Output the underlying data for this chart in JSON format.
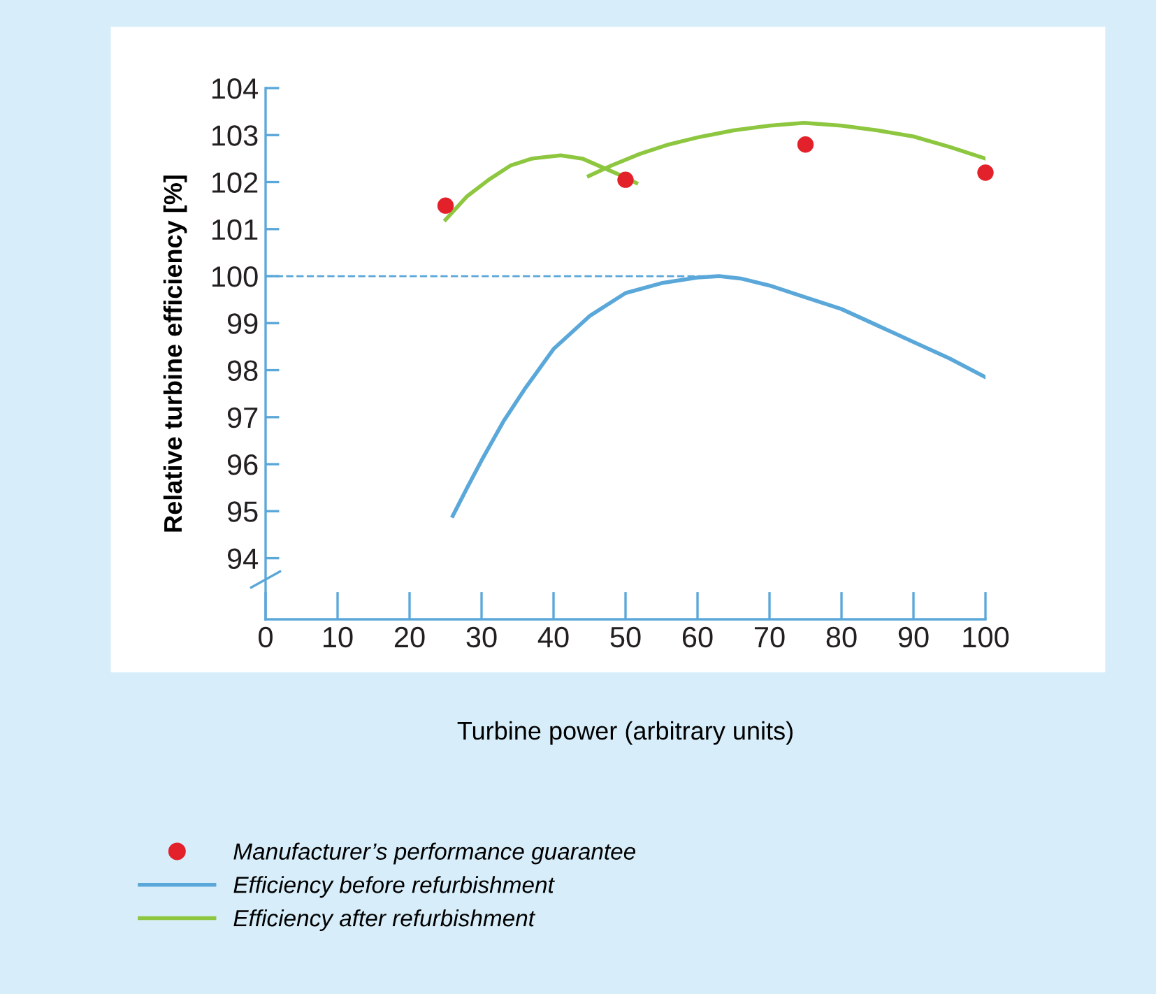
{
  "chart_data": {
    "type": "line",
    "xlabel": "Turbine power (arbitrary units)",
    "ylabel": "Relative turbine efficiency [%]",
    "xlim": [
      0,
      100
    ],
    "xticks": [
      0,
      10,
      20,
      30,
      40,
      50,
      60,
      70,
      80,
      90,
      100
    ],
    "ylim": [
      92.7,
      104
    ],
    "yticks": [
      94,
      95,
      96,
      97,
      98,
      99,
      100,
      101,
      102,
      103,
      104
    ],
    "grid": false,
    "legend": "bottom",
    "line_style": "solid",
    "series": [
      {
        "name": "Manufacturer’s performance guarantee",
        "type": "scatter",
        "marker": "circle",
        "color": "#e3212b",
        "x": [
          25,
          50,
          75,
          100
        ],
        "values": [
          101.5,
          102.05,
          102.8,
          102.2
        ]
      },
      {
        "name": "Efficiency before refurbishment",
        "color": "#5aa7d9",
        "x": [
          26,
          28,
          30,
          33,
          36,
          40,
          45,
          50,
          55,
          60,
          63,
          66,
          70,
          75,
          80,
          85,
          90,
          95,
          100
        ],
        "values": [
          94.9,
          95.5,
          96.08,
          96.9,
          97.6,
          98.45,
          99.15,
          99.64,
          99.85,
          99.97,
          100.0,
          99.95,
          99.8,
          99.55,
          99.3,
          98.95,
          98.6,
          98.25,
          97.85
        ]
      },
      {
        "name": "Efficiency after refurbishment",
        "color": "#8dc63f",
        "x": [
          25,
          28,
          31,
          34,
          37,
          41,
          44,
          47,
          50,
          51.5
        ],
        "values": [
          101.2,
          101.7,
          102.05,
          102.35,
          102.5,
          102.57,
          102.5,
          102.3,
          102.1,
          101.98
        ]
      },
      {
        "color": "#8dc63f",
        "x": [
          44.9,
          48,
          52,
          56,
          60,
          65,
          70,
          74.8,
          80,
          85,
          90,
          95,
          100
        ],
        "values": [
          102.13,
          102.35,
          102.6,
          102.8,
          102.95,
          103.1,
          103.2,
          103.26,
          103.2,
          103.1,
          102.97,
          102.75,
          102.5
        ]
      },
      {
        "color": "#5aa7d9",
        "line_style": "dashed",
        "x": [
          0,
          63
        ],
        "values": [
          100,
          100
        ]
      }
    ]
  }
}
